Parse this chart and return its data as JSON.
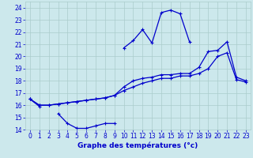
{
  "title": "Graphe des températures (°c)",
  "bg_color": "#cce8ec",
  "line_color": "#0000cc",
  "grid_color": "#aacccc",
  "xlim": [
    -0.5,
    23.5
  ],
  "ylim": [
    14,
    24.5
  ],
  "xticks": [
    0,
    1,
    2,
    3,
    4,
    5,
    6,
    7,
    8,
    9,
    10,
    11,
    12,
    13,
    14,
    15,
    16,
    17,
    18,
    19,
    20,
    21,
    22,
    23
  ],
  "yticks": [
    14,
    15,
    16,
    17,
    18,
    19,
    20,
    21,
    22,
    23,
    24
  ],
  "hours": [
    0,
    1,
    2,
    3,
    4,
    5,
    6,
    7,
    8,
    9,
    10,
    11,
    12,
    13,
    14,
    15,
    16,
    17,
    18,
    19,
    20,
    21,
    22,
    23
  ],
  "line_peak": [
    null,
    null,
    null,
    null,
    null,
    null,
    null,
    null,
    null,
    null,
    20.7,
    21.3,
    22.2,
    21.1,
    23.6,
    23.8,
    23.5,
    21.2,
    null,
    null,
    null,
    null,
    null,
    null
  ],
  "line_upper": [
    16.5,
    16.0,
    16.0,
    16.1,
    16.2,
    16.3,
    16.4,
    16.5,
    16.6,
    16.8,
    17.5,
    18.0,
    18.2,
    18.3,
    18.5,
    18.5,
    18.6,
    18.6,
    19.1,
    20.4,
    20.5,
    21.2,
    18.3,
    18.0
  ],
  "line_lower": [
    16.5,
    16.0,
    16.0,
    16.1,
    16.2,
    16.3,
    16.4,
    16.5,
    16.6,
    16.8,
    17.2,
    17.5,
    17.8,
    18.0,
    18.2,
    18.2,
    18.4,
    18.4,
    18.6,
    19.0,
    20.0,
    20.3,
    18.1,
    17.9
  ],
  "line_min": [
    16.5,
    15.9,
    null,
    15.3,
    14.5,
    14.1,
    14.1,
    14.3,
    14.5,
    14.5,
    null,
    null,
    null,
    null,
    null,
    null,
    null,
    null,
    null,
    null,
    null,
    null,
    null,
    null
  ]
}
